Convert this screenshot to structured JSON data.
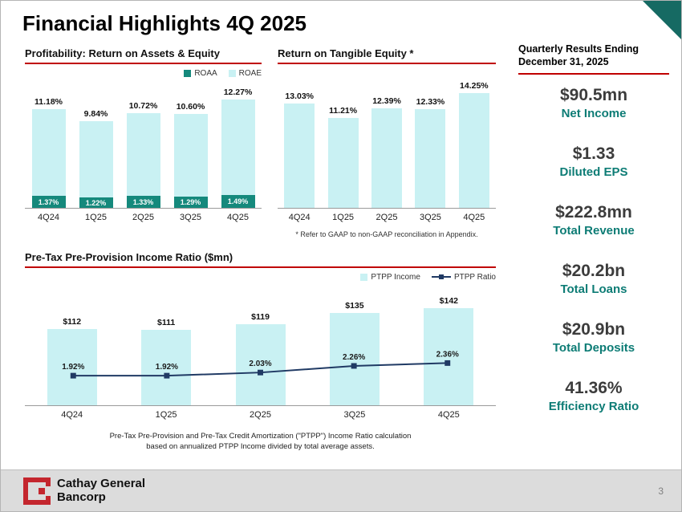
{
  "slide": {
    "title": "Financial Highlights 4Q 2025",
    "page_number": "3"
  },
  "sidebar": {
    "header_line1": "Quarterly Results Ending",
    "header_line2": "December 31, 2025",
    "metrics": [
      {
        "value": "$90.5mn",
        "label": "Net Income"
      },
      {
        "value": "$1.33",
        "label": "Diluted EPS"
      },
      {
        "value": "$222.8mn",
        "label": "Total Revenue"
      },
      {
        "value": "$20.2bn",
        "label": "Total Loans"
      },
      {
        "value": "$20.9bn",
        "label": "Total Deposits"
      },
      {
        "value": "41.36%",
        "label": "Efficiency Ratio"
      }
    ],
    "label_color": "#0d7c75",
    "rule_color": "#c00000"
  },
  "footer": {
    "logo_line1": "Cathay General",
    "logo_line2": "Bancorp",
    "logo_color": "#c4262e"
  },
  "chart_data": [
    {
      "type": "bar",
      "title": "Profitability: Return on Assets & Equity",
      "categories": [
        "4Q24",
        "1Q25",
        "2Q25",
        "3Q25",
        "4Q25"
      ],
      "series": [
        {
          "name": "ROAA",
          "values": [
            1.37,
            1.22,
            1.33,
            1.29,
            1.49
          ],
          "labels": [
            "1.37%",
            "1.22%",
            "1.33%",
            "1.29%",
            "1.49%"
          ],
          "color": "#15897c"
        },
        {
          "name": "ROAE",
          "values": [
            11.18,
            9.84,
            10.72,
            10.6,
            12.27
          ],
          "labels": [
            "11.18%",
            "9.84%",
            "10.72%",
            "10.60%",
            "12.27%"
          ],
          "color": "#c9f1f3"
        }
      ],
      "ylim": [
        0,
        14
      ],
      "grid": false,
      "legend_position": "top-right"
    },
    {
      "type": "bar",
      "title": "Return on Tangible Equity *",
      "categories": [
        "4Q24",
        "1Q25",
        "2Q25",
        "3Q25",
        "4Q25"
      ],
      "values": [
        13.03,
        11.21,
        12.39,
        12.33,
        14.25
      ],
      "labels": [
        "13.03%",
        "11.21%",
        "12.39%",
        "12.33%",
        "14.25%"
      ],
      "bar_color": "#c9f1f3",
      "footnote": "* Refer to GAAP to non-GAAP reconciliation in Appendix.",
      "ylim": [
        0,
        16
      ],
      "grid": false
    },
    {
      "type": "bar+line",
      "title": "Pre-Tax Pre-Provision Income Ratio ($mn)",
      "categories": [
        "4Q24",
        "1Q25",
        "2Q25",
        "3Q25",
        "4Q25"
      ],
      "series": [
        {
          "name": "PTPP Income",
          "type": "bar",
          "values": [
            112,
            111,
            119,
            135,
            142
          ],
          "labels": [
            "$112",
            "$111",
            "$119",
            "$135",
            "$142"
          ],
          "color": "#c9f1f3"
        },
        {
          "name": "PTPP Ratio",
          "type": "line",
          "values": [
            1.92,
            1.92,
            2.03,
            2.26,
            2.36
          ],
          "labels": [
            "1.92%",
            "1.92%",
            "2.03%",
            "2.26%",
            "2.36%"
          ],
          "color": "#203a64"
        }
      ],
      "footnote_line1": "Pre-Tax Pre-Provision and Pre-Tax Credit Amortization (\"PTPP\") Income Ratio calculation",
      "footnote_line2": "based on annualized PTPP Income divided by total average assets.",
      "bar_ylim": [
        0,
        160
      ],
      "ratio_ylim": [
        0,
        2.5
      ],
      "grid": false,
      "legend_position": "top-right"
    }
  ]
}
